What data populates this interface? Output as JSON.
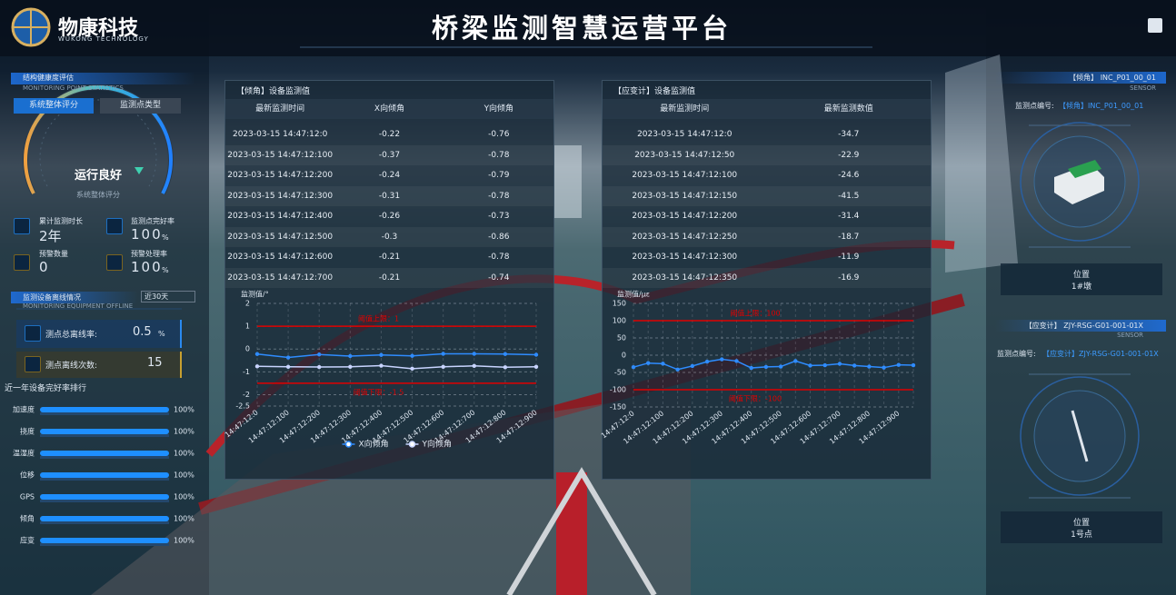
{
  "header": {
    "logo_name": "物康科技",
    "logo_sub": "WUKONG TECHNOLOGY",
    "title": "桥梁监测智慧运营平台"
  },
  "left_panel": {
    "health": {
      "title": "结构健康度评估",
      "subtitle": "MONITORING POINT STATISTICS",
      "tabs": [
        "系统整体评分",
        "监测点类型"
      ],
      "status": "运行良好",
      "caption": "系统整体评分"
    },
    "stats": [
      {
        "label": "累计监测时长",
        "value": "2年"
      },
      {
        "label": "监测点完好率",
        "value": "100",
        "unit": "%"
      },
      {
        "label": "预警数量",
        "value": "0"
      },
      {
        "label": "预警处理率",
        "value": "100",
        "unit": "%"
      }
    ],
    "offline": {
      "title": "监测设备离线情况",
      "subtitle": "MONITORING EQUIPMENT OFFLINE",
      "period": "近30天",
      "items": [
        {
          "label": "测点总离线率:",
          "value": "0.5",
          "unit": "%"
        },
        {
          "label": "测点离线次数:",
          "value": "15"
        }
      ]
    },
    "ranking": {
      "title": "近一年设备完好率排行",
      "categories": [
        "加速度",
        "挠度",
        "温湿度",
        "位移",
        "GPS",
        "倾角",
        "应变"
      ],
      "values": [
        100,
        100,
        100,
        100,
        100,
        100,
        100
      ],
      "value_labels": [
        "100%",
        "100%",
        "100%",
        "100%",
        "100%",
        "100%",
        "100%"
      ],
      "xlim": [
        0,
        100
      ],
      "color": "#1e8fff"
    }
  },
  "tables": [
    {
      "title": "【倾角】设备监测值",
      "columns": [
        "最新监测时间",
        "X向倾角",
        "Y向倾角"
      ],
      "rows": [
        [
          "2023-03-15 14:47:12:0",
          -0.22,
          -0.76
        ],
        [
          "2023-03-15 14:47:12:100",
          -0.37,
          -0.78
        ],
        [
          "2023-03-15 14:47:12:200",
          -0.24,
          -0.79
        ],
        [
          "2023-03-15 14:47:12:300",
          -0.31,
          -0.78
        ],
        [
          "2023-03-15 14:47:12:400",
          -0.26,
          -0.73
        ],
        [
          "2023-03-15 14:47:12:500",
          -0.3,
          -0.86
        ],
        [
          "2023-03-15 14:47:12:600",
          -0.21,
          -0.78
        ],
        [
          "2023-03-15 14:47:12:700",
          -0.21,
          -0.74
        ]
      ]
    },
    {
      "title": "【应变计】设备监测值",
      "columns": [
        "最新监测时间",
        "最新监测数值"
      ],
      "rows": [
        [
          "2023-03-15 14:47:12:0",
          -34.7
        ],
        [
          "2023-03-15 14:47:12:50",
          -22.9
        ],
        [
          "2023-03-15 14:47:12:100",
          -24.6
        ],
        [
          "2023-03-15 14:47:12:150",
          -41.5
        ],
        [
          "2023-03-15 14:47:12:200",
          -31.4
        ],
        [
          "2023-03-15 14:47:12:250",
          -18.7
        ],
        [
          "2023-03-15 14:47:12:300",
          -11.9
        ],
        [
          "2023-03-15 14:47:12:350",
          -16.9
        ]
      ]
    }
  ],
  "chart_data": [
    {
      "type": "line",
      "y_label": "监测值/°",
      "categories": [
        "14:47:12:0",
        "14:47:12:100",
        "14:47:12:200",
        "14:47:12:300",
        "14:47:12:400",
        "14:47:12:500",
        "14:47:12:600",
        "14:47:12:700",
        "14:47:12:800",
        "14:47:12:900"
      ],
      "series": [
        {
          "name": "X向倾角",
          "color": "#2f8cff",
          "values": [
            -0.22,
            -0.37,
            -0.24,
            -0.31,
            -0.26,
            -0.3,
            -0.21,
            -0.21,
            -0.22,
            -0.25
          ]
        },
        {
          "name": "Y向倾角",
          "color": "#c8d4ff",
          "values": [
            -0.76,
            -0.78,
            -0.79,
            -0.78,
            -0.73,
            -0.86,
            -0.78,
            -0.74,
            -0.8,
            -0.78
          ]
        }
      ],
      "ylim": [
        -2.5,
        2
      ],
      "yticks": [
        -2.5,
        -2,
        -1,
        0,
        1,
        2
      ],
      "thresholds": [
        {
          "label": "阈值上限：1",
          "value": 1
        },
        {
          "label": "阈值下限：-1.5",
          "value": -1.5
        }
      ],
      "threshold_color": "#e00000",
      "grid": true,
      "legend": "bottom"
    },
    {
      "type": "line",
      "y_label": "监测值/με",
      "categories": [
        "14:47:12:0",
        null,
        "14:47:12:100",
        null,
        "14:47:12:200",
        null,
        "14:47:12:300",
        null,
        "14:47:12:400",
        null,
        "14:47:12:500",
        null,
        "14:47:12:600",
        null,
        "14:47:12:700",
        null,
        "14:47:12:800",
        null,
        "14:47:12:900",
        null
      ],
      "series": [
        {
          "color": "#2f8cff",
          "values": [
            -34.7,
            -22.9,
            -24.6,
            -41.5,
            -31.4,
            -18.7,
            -11.9,
            -16.9,
            -37,
            -34,
            -33,
            -17,
            -30,
            -29,
            -25,
            -30,
            -33,
            -36,
            -28,
            -29
          ]
        }
      ],
      "ylim": [
        -150,
        150
      ],
      "yticks": [
        -150,
        -100,
        -50,
        0,
        50,
        100,
        150
      ],
      "thresholds": [
        {
          "label": "阈值上限：100",
          "value": 100
        },
        {
          "label": "阈值下限：-100",
          "value": -100
        }
      ],
      "threshold_color": "#e00000",
      "grid": true
    }
  ],
  "right_panel": {
    "sensors": [
      {
        "title": "【倾角】 INC_P01_00_01",
        "tag": "SENSOR",
        "id_label": "监测点编号:",
        "id_value": "【倾角】INC_P01_00_01",
        "location_label": "位置",
        "location": "1#墩"
      },
      {
        "title": "【应变计】 ZJY-RSG-G01-001-01X",
        "tag": "SENSOR",
        "id_label": "监测点编号:",
        "id_value": "【应变计】ZJY-RSG-G01-001-01X",
        "location_label": "位置",
        "location": "1号点"
      }
    ]
  }
}
